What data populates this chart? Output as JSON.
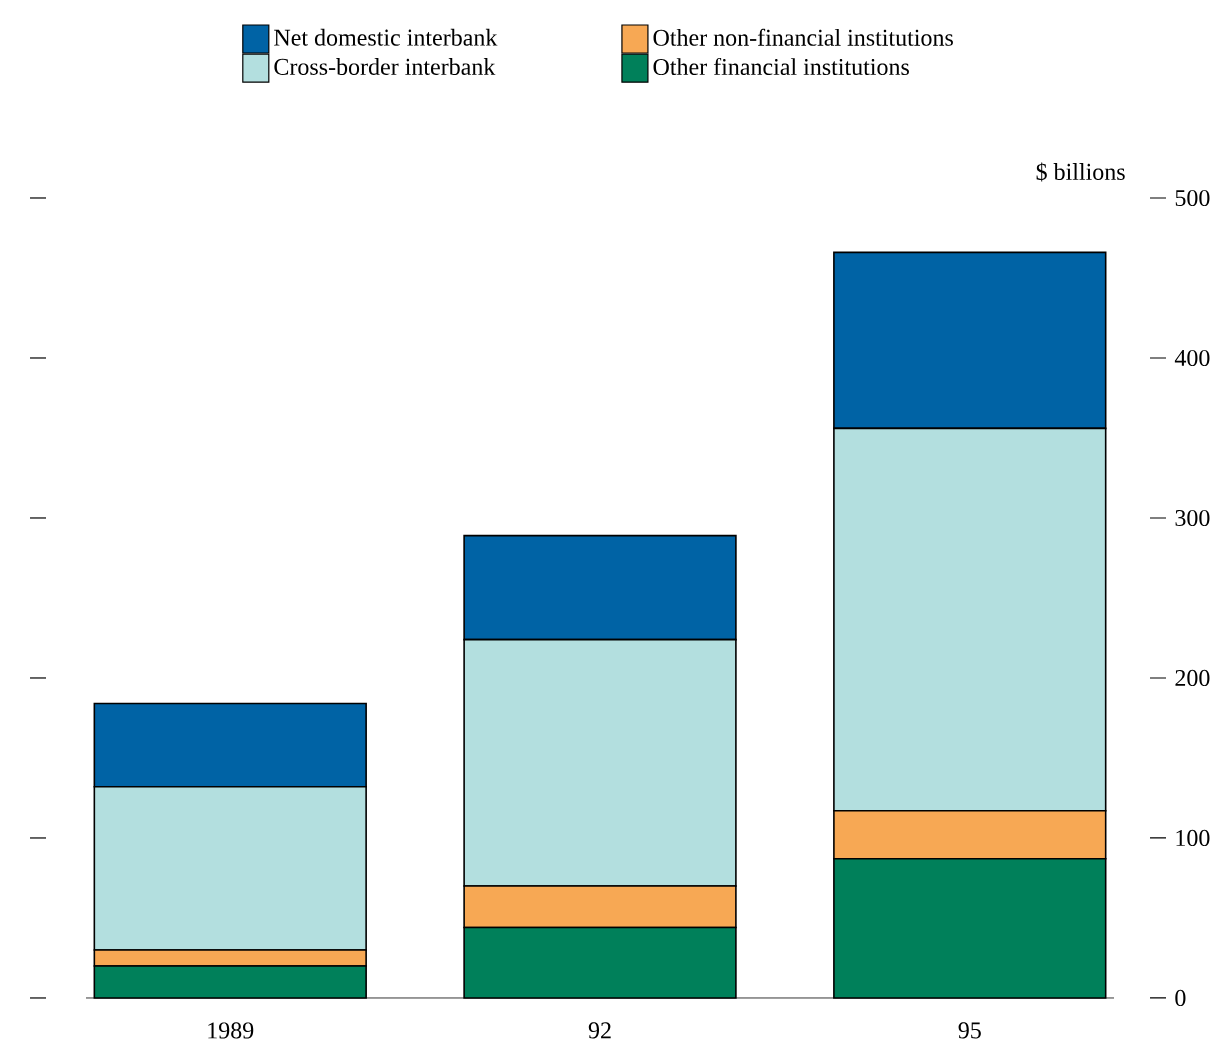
{
  "chart_data": {
    "type": "bar",
    "stacked": true,
    "ylabel": "$ billions",
    "categories": [
      "1989",
      "92",
      "95"
    ],
    "series": [
      {
        "name": "Other financial institutions",
        "color": "#00805a",
        "values": [
          20,
          44,
          87
        ]
      },
      {
        "name": "Other non-financial institutions",
        "color": "#f7a854",
        "values": [
          10,
          26,
          30
        ]
      },
      {
        "name": "Cross-border interbank",
        "color": "#b3dfdf",
        "values": [
          102,
          154,
          239
        ]
      },
      {
        "name": "Net domestic interbank",
        "color": "#0063a5",
        "values": [
          52,
          65,
          110
        ]
      }
    ],
    "ylim": [
      0,
      500
    ],
    "yticks": [
      0,
      100,
      200,
      300,
      400,
      500
    ],
    "legend": "top"
  }
}
